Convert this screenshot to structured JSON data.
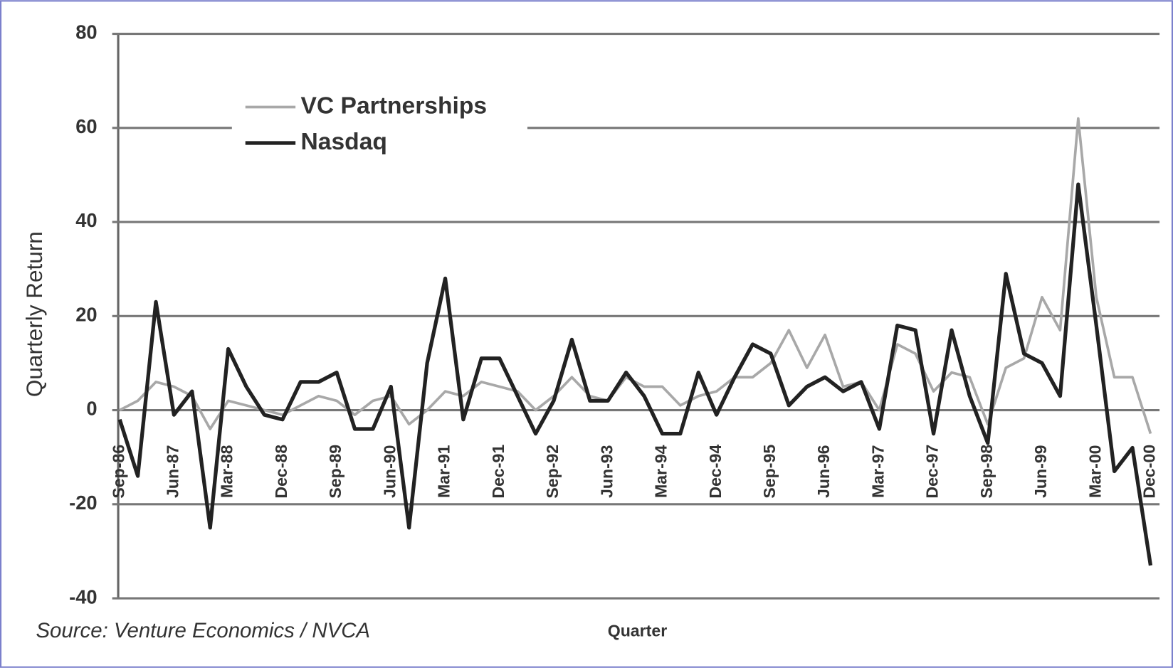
{
  "chart_data": {
    "type": "line",
    "ylabel": "Quarterly Return",
    "xlabel": "Quarter",
    "source": "Source: Venture Economics / NVCA",
    "categories": [
      "Sep-86",
      null,
      null,
      "Jun-87",
      null,
      null,
      "Mar-88",
      null,
      null,
      "Dec-88",
      null,
      null,
      "Sep-89",
      null,
      null,
      "Jun-90",
      null,
      null,
      "Mar-91",
      null,
      null,
      "Dec-91",
      null,
      null,
      "Sep-92",
      null,
      null,
      "Jun-93",
      null,
      null,
      "Mar-94",
      null,
      null,
      "Dec-94",
      null,
      null,
      "Sep-95",
      null,
      null,
      "Jun-96",
      null,
      null,
      "Mar-97",
      null,
      null,
      "Dec-97",
      null,
      null,
      "Sep-98",
      null,
      null,
      "Jun-99",
      null,
      null,
      "Mar-00",
      null,
      null,
      "Dec-00"
    ],
    "series": [
      {
        "name": "VC Partnerships",
        "color": "#a8a8a8",
        "values": [
          0,
          2,
          6,
          5,
          3,
          -4,
          2,
          1,
          0,
          -1,
          1,
          3,
          2,
          -1,
          2,
          3,
          -3,
          0,
          4,
          3,
          6,
          5,
          4,
          0,
          3,
          7,
          3,
          2,
          7,
          5,
          5,
          1,
          3,
          4,
          7,
          7,
          10,
          17,
          9,
          16,
          5,
          6,
          0,
          14,
          12,
          4,
          8,
          7,
          -3,
          9,
          11,
          24,
          17,
          62,
          24,
          7,
          7,
          -5
        ]
      },
      {
        "name": "Nasdaq",
        "color": "#222222",
        "values": [
          -2,
          -14,
          23,
          -1,
          4,
          -25,
          13,
          5,
          -1,
          -2,
          6,
          6,
          8,
          -4,
          -4,
          5,
          -25,
          10,
          28,
          -2,
          11,
          11,
          3,
          -5,
          2,
          15,
          2,
          2,
          8,
          3,
          -5,
          -5,
          8,
          -1,
          7,
          14,
          12,
          1,
          5,
          7,
          4,
          6,
          -4,
          18,
          17,
          -5,
          17,
          3,
          -7,
          29,
          12,
          10,
          3,
          48,
          18,
          -13,
          -8,
          -33
        ]
      }
    ],
    "ylim": [
      -40,
      80
    ],
    "yticks": [
      -40,
      -20,
      0,
      20,
      40,
      60,
      80
    ],
    "grid": true,
    "legend": "upper left"
  }
}
